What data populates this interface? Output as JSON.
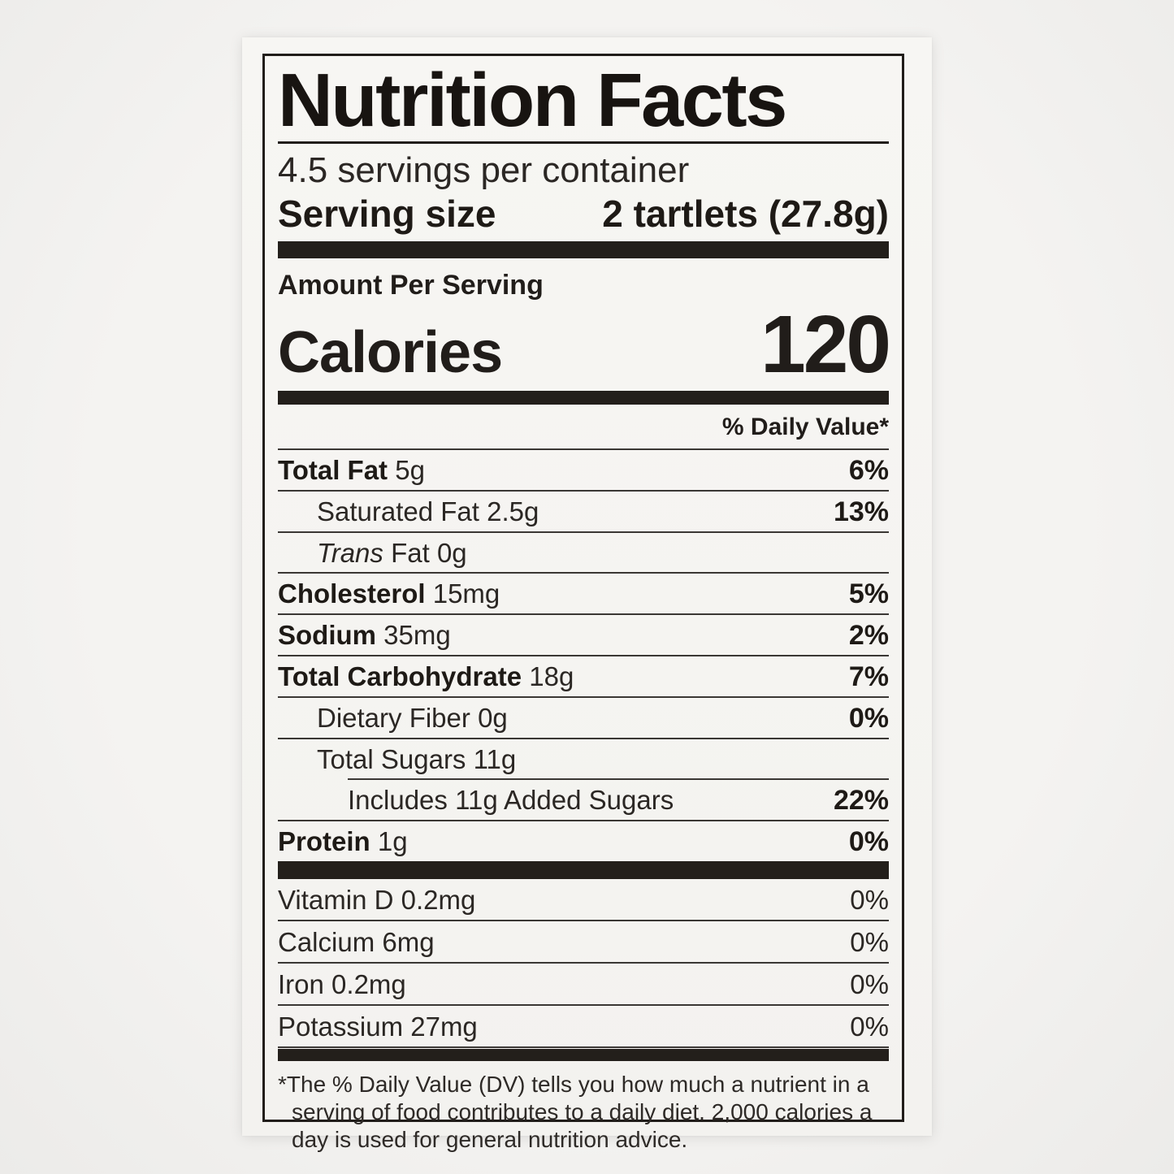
{
  "colors": {
    "ink": "#211d1a",
    "paper": "#f6f5f2",
    "background": "#f1f0ee"
  },
  "label": {
    "title": "Nutrition Facts",
    "servings_per_container": "4.5 servings per container",
    "serving_size": {
      "label": "Serving size",
      "value": "2 tartlets (27.8g)"
    },
    "amount_per_serving": "Amount Per Serving",
    "calories": {
      "label": "Calories",
      "value": "120"
    },
    "daily_value_header": "% Daily Value*",
    "rows": [
      {
        "name": "Total Fat",
        "amount": "5g",
        "dv": "6%"
      },
      {
        "name": "Saturated Fat",
        "amount": "2.5g",
        "dv": "13%"
      },
      {
        "name_italic": "Trans",
        "name": "Fat",
        "amount": "0g",
        "dv": ""
      },
      {
        "name": "Cholesterol",
        "amount": "15mg",
        "dv": "5%"
      },
      {
        "name": "Sodium",
        "amount": "35mg",
        "dv": "2%"
      },
      {
        "name": "Total Carbohydrate",
        "amount": "18g",
        "dv": "7%"
      },
      {
        "name": "Dietary Fiber",
        "amount": "0g",
        "dv": "0%"
      },
      {
        "name": "Total Sugars",
        "amount": "11g",
        "dv": ""
      },
      {
        "name": "Includes 11g Added Sugars",
        "amount": "",
        "dv": "22%"
      },
      {
        "name": "Protein",
        "amount": "1g",
        "dv": "0%"
      }
    ],
    "micronutrients": [
      {
        "name": "Vitamin D",
        "amount": "0.2mg",
        "dv": "0%"
      },
      {
        "name": "Calcium",
        "amount": "6mg",
        "dv": "0%"
      },
      {
        "name": "Iron",
        "amount": "0.2mg",
        "dv": "0%"
      },
      {
        "name": "Potassium",
        "amount": "27mg",
        "dv": "0%"
      }
    ],
    "footnote": {
      "marker": "*",
      "text": "The % Daily Value (DV) tells you how much a nutrient in a serving of food contributes to a daily diet. 2,000 calories a day is used for general nutrition advice."
    }
  }
}
